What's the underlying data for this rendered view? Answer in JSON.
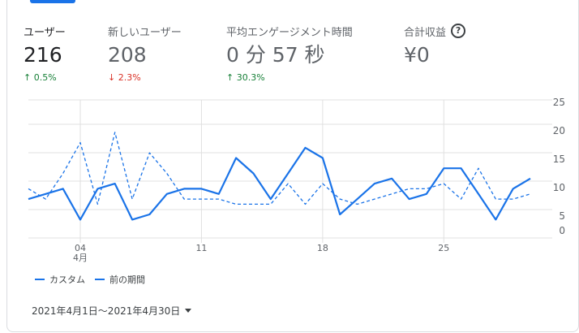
{
  "metrics": [
    {
      "label": "ユーザー",
      "value": "216",
      "delta": "0.5%",
      "direction": "up"
    },
    {
      "label": "新しいユーザー",
      "value": "208",
      "delta": "2.3%",
      "direction": "down"
    },
    {
      "label": "平均エンゲージメント時間",
      "value": "0 分 57 秒",
      "delta": "30.3%",
      "direction": "up"
    },
    {
      "label": "合計収益",
      "value": "¥0",
      "help_icon": "help-circle-icon"
    }
  ],
  "legend": {
    "current": "カスタム",
    "previous": "前の期間"
  },
  "date_range": {
    "label": "2021年4月1日～2021年4月30日"
  },
  "colors": {
    "accent": "#1a73e8",
    "up": "#188038",
    "down": "#d93025",
    "grid": "#e0e0e0"
  },
  "chart_data": {
    "type": "line",
    "x": [
      1,
      2,
      3,
      4,
      5,
      6,
      7,
      8,
      9,
      10,
      11,
      12,
      13,
      14,
      15,
      16,
      17,
      18,
      19,
      20,
      21,
      22,
      23,
      24,
      25,
      26,
      27,
      28,
      29,
      30
    ],
    "x_ticks": [
      {
        "day": 4,
        "label": "04",
        "sub": "4月"
      },
      {
        "day": 11,
        "label": "11"
      },
      {
        "day": 18,
        "label": "18"
      },
      {
        "day": 25,
        "label": "25"
      }
    ],
    "y_ticks": [
      "0",
      "5",
      "10",
      "15",
      "20",
      "25"
    ],
    "ylim": [
      0,
      25
    ],
    "series": [
      {
        "name": "カスタム",
        "style": "solid",
        "values": [
          6,
          7,
          8,
          2,
          8,
          9,
          2,
          3,
          7,
          8,
          8,
          7,
          14,
          11,
          6,
          11,
          16,
          14,
          3,
          6,
          9,
          10,
          6,
          7,
          12,
          12,
          7,
          2,
          8,
          10
        ]
      },
      {
        "name": "前の期間",
        "style": "dashed",
        "values": [
          8,
          6,
          11,
          17,
          5,
          19,
          6,
          15,
          11,
          6,
          6,
          6,
          5,
          5,
          5,
          9,
          5,
          9,
          6,
          5,
          6,
          7,
          8,
          8,
          9,
          6,
          12,
          6,
          6,
          7
        ]
      }
    ]
  }
}
